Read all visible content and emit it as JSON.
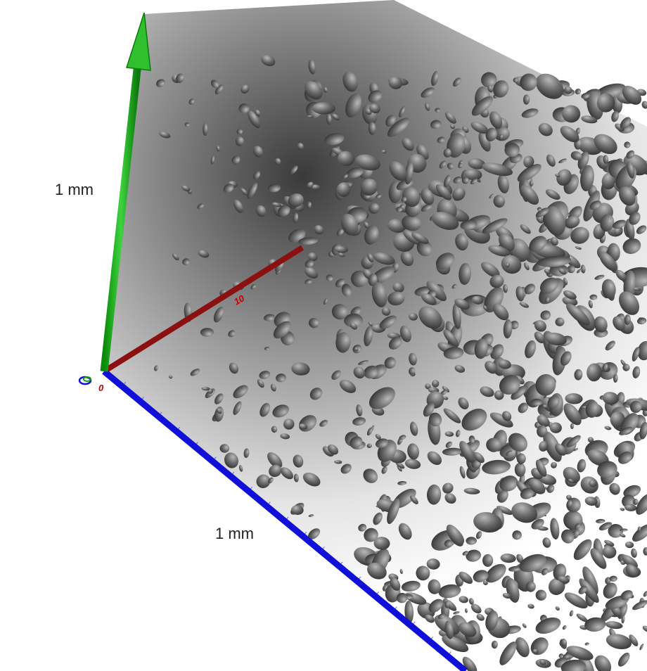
{
  "axes": {
    "y_label": "1 mm",
    "z_label": "1 mm",
    "origin_label": "0",
    "x_tick_label": "10"
  }
}
